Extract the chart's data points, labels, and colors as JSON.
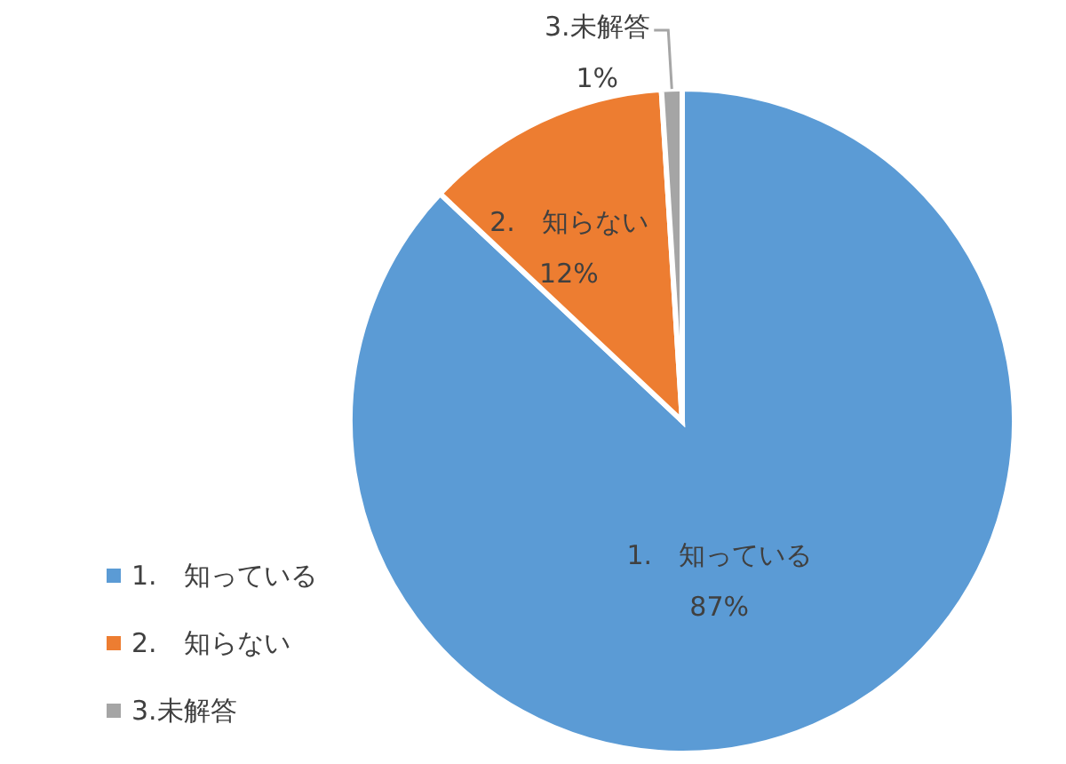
{
  "chart_data": {
    "type": "pie",
    "categories": [
      "1.　知っている",
      "2.　知らない",
      "3.未解答"
    ],
    "values": [
      87,
      12,
      1
    ],
    "value_labels": [
      "87%",
      "12%",
      "1%"
    ],
    "colors": [
      "#5b9bd5",
      "#ed7d31",
      "#a5a5a5"
    ],
    "legend": "bottom left"
  }
}
